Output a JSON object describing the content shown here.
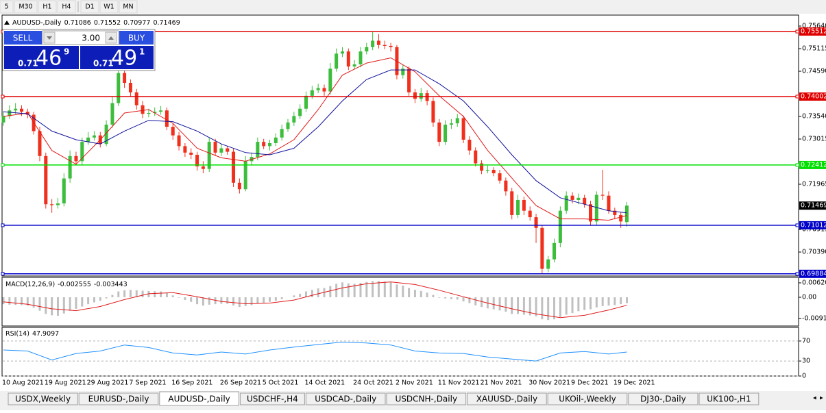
{
  "toolbar": {
    "timeframes": [
      "5",
      "M30",
      "H1",
      "H4",
      "D1",
      "W1",
      "MN"
    ]
  },
  "trade_panel": {
    "sell": "SELL",
    "lots": "3.00",
    "buy": "BUY",
    "bid": {
      "big": "0.71",
      "pips": "46",
      "frac": "9"
    },
    "ask": {
      "big": "0.71",
      "pips": "49",
      "frac": "1"
    }
  },
  "chart_data": [
    {
      "type": "candlestick",
      "title": "AUDUSD-,Daily",
      "categories": [
        "10 Aug 2021",
        null,
        null,
        null,
        null,
        null,
        null,
        "19 Aug 2021",
        null,
        null,
        null,
        null,
        null,
        null,
        "29 Aug 2021",
        null,
        null,
        null,
        null,
        null,
        null,
        "7 Sep 2021",
        null,
        null,
        null,
        null,
        null,
        null,
        "16 Sep 2021",
        null,
        null,
        null,
        null,
        null,
        null,
        null,
        "26 Sep 2021",
        null,
        null,
        null,
        null,
        null,
        null,
        "5 Oct 2021",
        null,
        null,
        null,
        null,
        null,
        null,
        "14 Oct 2021",
        null,
        null,
        null,
        null,
        null,
        null,
        null,
        "24 Oct 2021",
        null,
        null,
        null,
        null,
        null,
        null,
        "2 Nov 2021",
        null,
        null,
        null,
        null,
        null,
        null,
        "11 Nov 2021",
        null,
        null,
        null,
        null,
        null,
        null,
        "21 Nov 2021",
        null,
        null,
        null,
        null,
        null,
        null,
        null,
        "30 Nov 2021",
        null,
        null,
        null,
        null,
        null,
        null,
        "9 Dec 2021",
        null,
        null,
        null,
        null,
        null,
        null,
        "19 Dec 2021",
        null,
        null
      ],
      "open": [
        0.734,
        0.7355,
        0.7368,
        0.7372,
        0.7365,
        0.7358,
        0.732,
        0.7262,
        0.715,
        0.7148,
        0.7152,
        0.721,
        0.7262,
        0.725,
        0.7295,
        0.7305,
        0.731,
        0.729,
        0.7335,
        0.7385,
        0.7455,
        0.7432,
        0.741,
        0.738,
        0.736,
        0.7362,
        0.7365,
        0.7368,
        0.733,
        0.731,
        0.7285,
        0.727,
        0.7265,
        0.7238,
        0.7232,
        0.7295,
        0.727,
        0.728,
        0.7272,
        0.72,
        0.7185,
        0.725,
        0.726,
        0.7295,
        0.7285,
        0.7292,
        0.7305,
        0.7325,
        0.734,
        0.7355,
        0.7372,
        0.7402,
        0.7415,
        0.742,
        0.7412,
        0.7465,
        0.75,
        0.7505,
        0.747,
        0.7475,
        0.7505,
        0.7515,
        0.753,
        0.752,
        0.7518,
        0.7515,
        0.745,
        0.7465,
        0.741,
        0.7395,
        0.7408,
        0.739,
        0.734,
        0.7295,
        0.7335,
        0.7338,
        0.735,
        0.73,
        0.7275,
        0.7245,
        0.7228,
        0.723,
        0.7222,
        0.7205,
        0.718,
        0.7125,
        0.716,
        0.7135,
        0.712,
        0.7095,
        0.7,
        0.7022,
        0.706,
        0.7135,
        0.717,
        0.716,
        0.7165,
        0.715,
        0.711,
        0.7172,
        0.717,
        0.7135,
        0.7125,
        0.71086
      ],
      "high": [
        0.7366,
        0.738,
        0.7385,
        0.738,
        0.7372,
        0.7365,
        0.733,
        0.727,
        0.7162,
        0.7165,
        0.7222,
        0.7275,
        0.7272,
        0.7305,
        0.7318,
        0.732,
        0.7318,
        0.7345,
        0.74,
        0.7468,
        0.7465,
        0.744,
        0.7418,
        0.739,
        0.7372,
        0.7375,
        0.7378,
        0.7375,
        0.7338,
        0.7318,
        0.7292,
        0.728,
        0.7272,
        0.725,
        0.7305,
        0.7302,
        0.729,
        0.7286,
        0.728,
        0.721,
        0.7262,
        0.727,
        0.7305,
        0.7302,
        0.73,
        0.7315,
        0.7335,
        0.7348,
        0.7365,
        0.7382,
        0.7412,
        0.7425,
        0.743,
        0.7428,
        0.7478,
        0.7512,
        0.7515,
        0.7512,
        0.7485,
        0.7515,
        0.7525,
        0.7551,
        0.7545,
        0.753,
        0.7525,
        0.752,
        0.7475,
        0.747,
        0.7418,
        0.742,
        0.7415,
        0.7398,
        0.7348,
        0.7345,
        0.7348,
        0.736,
        0.7356,
        0.7308,
        0.7282,
        0.7252,
        0.724,
        0.7236,
        0.723,
        0.7212,
        0.7188,
        0.7172,
        0.7168,
        0.7145,
        0.7128,
        0.7102,
        0.703,
        0.707,
        0.7145,
        0.718,
        0.7178,
        0.7175,
        0.7172,
        0.7158,
        0.718,
        0.723,
        0.718,
        0.7142,
        0.7132,
        0.71552
      ],
      "low": [
        0.7332,
        0.7348,
        0.736,
        0.7355,
        0.735,
        0.7312,
        0.725,
        0.714,
        0.713,
        0.714,
        0.7145,
        0.72,
        0.7242,
        0.724,
        0.7288,
        0.7298,
        0.7282,
        0.7285,
        0.7328,
        0.7378,
        0.742,
        0.74,
        0.737,
        0.735,
        0.7352,
        0.7355,
        0.7358,
        0.7322,
        0.73,
        0.7275,
        0.726,
        0.7255,
        0.7228,
        0.7222,
        0.7225,
        0.7262,
        0.7262,
        0.7265,
        0.719,
        0.7175,
        0.718,
        0.724,
        0.7252,
        0.7278,
        0.7275,
        0.7285,
        0.7298,
        0.7318,
        0.7332,
        0.7348,
        0.7365,
        0.7395,
        0.7408,
        0.7402,
        0.7405,
        0.7458,
        0.7492,
        0.7462,
        0.7463,
        0.7468,
        0.7498,
        0.7508,
        0.7512,
        0.751,
        0.7505,
        0.744,
        0.7442,
        0.7402,
        0.7385,
        0.7388,
        0.738,
        0.733,
        0.7285,
        0.7288,
        0.7325,
        0.733,
        0.7292,
        0.7265,
        0.7238,
        0.722,
        0.7222,
        0.7215,
        0.7198,
        0.717,
        0.7115,
        0.7118,
        0.7125,
        0.7112,
        0.706,
        0.699,
        0.6992,
        0.7015,
        0.705,
        0.7128,
        0.7152,
        0.715,
        0.7142,
        0.71,
        0.7102,
        0.716,
        0.7128,
        0.7115,
        0.7095,
        0.70977
      ],
      "close": [
        0.7355,
        0.7368,
        0.7372,
        0.7365,
        0.7358,
        0.732,
        0.7262,
        0.715,
        0.7148,
        0.7152,
        0.721,
        0.7262,
        0.725,
        0.7295,
        0.7305,
        0.731,
        0.729,
        0.7335,
        0.7385,
        0.7455,
        0.7432,
        0.741,
        0.738,
        0.736,
        0.7362,
        0.7365,
        0.7368,
        0.733,
        0.731,
        0.7285,
        0.727,
        0.7265,
        0.7238,
        0.7232,
        0.7295,
        0.727,
        0.728,
        0.7272,
        0.72,
        0.7185,
        0.725,
        0.726,
        0.7295,
        0.7285,
        0.7292,
        0.7305,
        0.7325,
        0.734,
        0.7355,
        0.7372,
        0.7402,
        0.7415,
        0.742,
        0.7412,
        0.7465,
        0.75,
        0.7505,
        0.747,
        0.7475,
        0.7505,
        0.7515,
        0.753,
        0.752,
        0.7518,
        0.7515,
        0.745,
        0.7465,
        0.741,
        0.7395,
        0.7408,
        0.739,
        0.734,
        0.7295,
        0.7335,
        0.7338,
        0.735,
        0.73,
        0.7275,
        0.7245,
        0.7228,
        0.723,
        0.7222,
        0.7205,
        0.718,
        0.7125,
        0.716,
        0.7135,
        0.712,
        0.7095,
        0.7,
        0.7022,
        0.706,
        0.7135,
        0.717,
        0.716,
        0.7165,
        0.715,
        0.711,
        0.7172,
        0.717,
        0.7135,
        0.7125,
        0.711,
        0.71469
      ],
      "up_color": "#3cbd3c",
      "down_color": "#f0301c",
      "series": [
        {
          "color": "#e01818",
          "x": [
            0,
            4,
            8,
            12,
            16,
            20,
            24,
            28,
            32,
            36,
            40,
            44,
            48,
            52,
            56,
            60,
            64,
            68,
            72,
            76,
            80,
            84,
            88,
            92,
            96,
            100,
            103
          ],
          "values": [
            0.7354,
            0.7362,
            0.7275,
            0.7243,
            0.73,
            0.7362,
            0.737,
            0.7338,
            0.728,
            0.7258,
            0.725,
            0.7267,
            0.73,
            0.737,
            0.745,
            0.7478,
            0.749,
            0.7458,
            0.7402,
            0.7354,
            0.7275,
            0.7211,
            0.7147,
            0.7116,
            0.7116,
            0.7113,
            0.7124
          ]
        },
        {
          "color": "#10109c",
          "x": [
            0,
            4,
            8,
            12,
            16,
            20,
            24,
            28,
            32,
            36,
            40,
            44,
            48,
            52,
            56,
            60,
            64,
            68,
            72,
            76,
            80,
            84,
            88,
            92,
            96,
            100,
            103
          ],
          "values": [
            0.7365,
            0.736,
            0.732,
            0.73,
            0.729,
            0.732,
            0.7345,
            0.7342,
            0.732,
            0.729,
            0.727,
            0.7265,
            0.728,
            0.733,
            0.739,
            0.744,
            0.7462,
            0.7462,
            0.743,
            0.739,
            0.733,
            0.7265,
            0.7205,
            0.7165,
            0.715,
            0.7135,
            0.713
          ]
        }
      ],
      "levels": [
        {
          "value": 0.75512,
          "color": "#e00000"
        },
        {
          "value": 0.74002,
          "color": "#e00000"
        },
        {
          "value": 0.72412,
          "color": "#00e000"
        },
        {
          "value": 0.71012,
          "color": "#0000c8"
        },
        {
          "value": 0.69884,
          "color": "#0000c8"
        }
      ],
      "ylim": [
        0.69849,
        0.75736
      ],
      "yticks": [
        {
          "value": 0.7564,
          "label": "0.75640"
        },
        0.75115,
        {
          "value": 0.7459,
          "label": "0.74590"
        },
        {
          "value": 0.7354,
          "label": "0.73540"
        },
        0.73015,
        0.71965,
        0.70915,
        {
          "value": 0.7039,
          "label": "0.70390"
        }
      ]
    },
    {
      "type": "macd",
      "title": "MACD(12,26,9)",
      "color": "#c0c0c0",
      "values": [
        -0.003,
        -0.0032,
        -0.0033,
        -0.0034,
        -0.0036,
        -0.0045,
        -0.0058,
        -0.0072,
        -0.0078,
        -0.008,
        -0.007,
        -0.0058,
        -0.005,
        -0.004,
        -0.003,
        -0.0022,
        -0.0015,
        -0.0005,
        0.001,
        0.0025,
        0.003,
        0.0032,
        0.003,
        0.0028,
        0.0027,
        0.0026,
        0.0025,
        0.0018,
        0.0008,
        -0.0002,
        -0.0012,
        -0.002,
        -0.003,
        -0.0036,
        -0.0032,
        -0.003,
        -0.0028,
        -0.0028,
        -0.0036,
        -0.0042,
        -0.0038,
        -0.0034,
        -0.0028,
        -0.0024,
        -0.002,
        -0.0015,
        -0.0008,
        0.0,
        0.0008,
        0.0015,
        0.0025,
        0.0032,
        0.0038,
        0.004,
        0.0048,
        0.0058,
        0.0064,
        0.006,
        0.0058,
        0.0062,
        0.0066,
        0.007,
        0.007,
        0.0068,
        0.0065,
        0.0055,
        0.005,
        0.004,
        0.0032,
        0.0027,
        0.002,
        0.001,
        -0.0002,
        -0.0005,
        -0.0008,
        -0.001,
        -0.0018,
        -0.0025,
        -0.0035,
        -0.0042,
        -0.0048,
        -0.0052,
        -0.0057,
        -0.0062,
        -0.0072,
        -0.0072,
        -0.0075,
        -0.0078,
        -0.0082,
        -0.0095,
        -0.0098,
        -0.0095,
        -0.0085,
        -0.0075,
        -0.0068,
        -0.006,
        -0.0055,
        -0.0052,
        -0.0044,
        -0.0038,
        -0.0036,
        -0.0034,
        -0.003,
        -0.002555
      ],
      "signal": {
        "color": "#e01818",
        "x": [
          0,
          4,
          8,
          12,
          16,
          20,
          24,
          28,
          32,
          36,
          40,
          44,
          48,
          52,
          56,
          60,
          64,
          68,
          72,
          76,
          80,
          84,
          88,
          92,
          96,
          100,
          103
        ],
        "values": [
          -0.002,
          -0.003,
          -0.005,
          -0.0058,
          -0.004,
          -0.001,
          0.0015,
          0.002,
          0.0002,
          -0.0018,
          -0.0028,
          -0.0025,
          -0.0012,
          0.0015,
          0.004,
          0.0058,
          0.0066,
          0.0055,
          0.003,
          0.0002,
          -0.0025,
          -0.005,
          -0.0072,
          -0.0088,
          -0.0078,
          -0.0055,
          -0.003443
        ]
      },
      "ylim": [
        -0.0121,
        0.00826
      ],
      "yticks": [
        0.006201,
        {
          "value": 0,
          "label": "0.00"
        },
        -0.00919
      ]
    },
    {
      "type": "line",
      "title": "RSI(14)",
      "series": [
        {
          "color": "#1e90ff",
          "x": [
            0,
            4,
            8,
            12,
            16,
            20,
            24,
            28,
            32,
            36,
            40,
            44,
            48,
            52,
            56,
            60,
            64,
            68,
            72,
            76,
            80,
            84,
            88,
            92,
            96,
            100,
            103
          ],
          "values": [
            52,
            50,
            32,
            45,
            50,
            62,
            57,
            46,
            42,
            48,
            44,
            52,
            58,
            63,
            68,
            66,
            62,
            50,
            46,
            45,
            38,
            34,
            30,
            46,
            49,
            44,
            47.9097
          ]
        }
      ],
      "ylim": [
        0,
        100
      ],
      "yticks": [
        70,
        30,
        0
      ],
      "grid": true
    }
  ],
  "tabs": [
    {
      "label": "USDX,Weekly"
    },
    {
      "label": "EURUSD-,Daily"
    },
    {
      "label": "AUDUSD-,Daily",
      "active": true
    },
    {
      "label": "USDCHF-,H4"
    },
    {
      "label": "USDCAD-,Daily"
    },
    {
      "label": "USDCNH-,Daily"
    },
    {
      "label": "XAUUSD-,Daily"
    },
    {
      "label": "UKOil-,Weekly"
    },
    {
      "label": "DJ30-,Daily"
    },
    {
      "label": "UK100-,H1"
    }
  ]
}
